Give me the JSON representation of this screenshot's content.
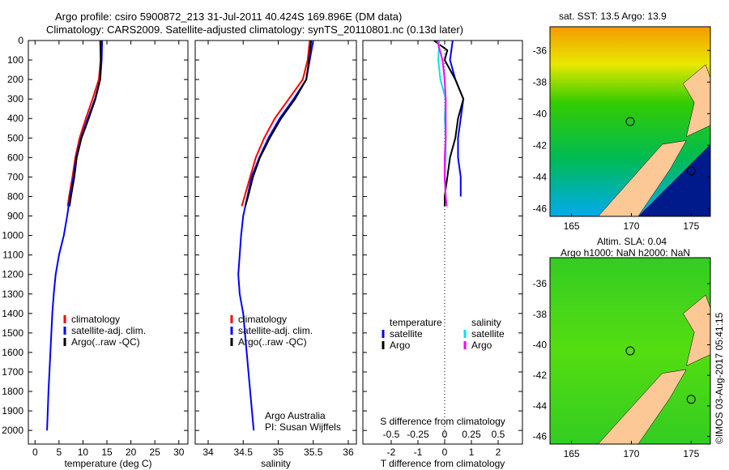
{
  "title_line1": "Argo profile: csiro 5900872_213 31-Jul-2011 40.424S 169.896E (DM data)",
  "title_line2": "Climatology: CARS2009. Satellite-adjusted climatology: synTS_20110801.nc (0.13d later)",
  "credit_org": "Argo Australia",
  "credit_pi": "PI: Susan Wijffels",
  "footer": "©IMOS 03-Aug-2017 05:41:15",
  "colors": {
    "climatology": "#ff0000",
    "satellite": "#0000ff",
    "argo": "#000000",
    "sal_sat": "#00e5e5",
    "sal_argo": "#ff00ff"
  },
  "chart_data": [
    {
      "type": "line",
      "name": "temperature",
      "xlabel": "temperature (deg C)",
      "ylabel": "depth",
      "xlim": [
        -1.4,
        31.9
      ],
      "ylim": [
        0,
        2070
      ],
      "xticks": [
        0,
        5,
        10,
        15,
        20,
        25,
        30
      ],
      "yticks": [
        0,
        100,
        200,
        300,
        400,
        500,
        600,
        700,
        800,
        900,
        1000,
        1100,
        1200,
        1300,
        1400,
        1500,
        1600,
        1700,
        1800,
        1900,
        2000
      ],
      "legend": [
        "climatology",
        "satellite-adj. clim.",
        "Argo(..raw -QC)"
      ],
      "series": [
        {
          "name": "climatology",
          "color": "#ff0000",
          "depth": [
            0,
            100,
            200,
            300,
            400,
            500,
            600,
            700,
            800,
            850
          ],
          "values": [
            13.8,
            13.7,
            13.3,
            12.0,
            10.6,
            9.3,
            8.4,
            7.8,
            7.1,
            6.8
          ]
        },
        {
          "name": "satellite-adj. clim.",
          "color": "#0000ff",
          "depth": [
            0,
            100,
            200,
            300,
            400,
            500,
            600,
            700,
            800,
            900,
            1000,
            1100,
            1200,
            1300,
            1400,
            1600,
            1800,
            2000
          ],
          "values": [
            14.0,
            13.9,
            13.6,
            12.5,
            11.0,
            9.6,
            8.6,
            8.0,
            7.3,
            6.7,
            6.0,
            5.0,
            4.3,
            3.9,
            3.6,
            3.2,
            2.8,
            2.5
          ]
        },
        {
          "name": "Argo(..raw -QC)",
          "color": "#000000",
          "depth": [
            0,
            100,
            200,
            300,
            400,
            500,
            600,
            700,
            800,
            850
          ],
          "values": [
            13.6,
            13.7,
            13.6,
            12.6,
            11.2,
            9.7,
            8.7,
            8.2,
            7.5,
            7.2
          ]
        }
      ]
    },
    {
      "type": "line",
      "name": "salinity",
      "xlabel": "salinity",
      "xlim": [
        33.815,
        36.116
      ],
      "ylim": [
        0,
        2070
      ],
      "xticks": [
        34,
        34.5,
        35,
        35.5,
        36
      ],
      "legend": [
        "climatology",
        "satellite-adj. clim.",
        "Argo(..raw -QC)"
      ],
      "series": [
        {
          "name": "climatology",
          "color": "#ff0000",
          "depth": [
            0,
            100,
            200,
            300,
            400,
            500,
            600,
            700,
            800,
            850
          ],
          "values": [
            35.45,
            35.42,
            35.35,
            35.15,
            34.95,
            34.8,
            34.68,
            34.6,
            34.52,
            34.48
          ]
        },
        {
          "name": "satellite-adj. clim.",
          "color": "#0000ff",
          "depth": [
            0,
            100,
            200,
            300,
            400,
            500,
            600,
            700,
            800,
            900,
            1000,
            1100,
            1200,
            1300,
            1400,
            1600,
            1800,
            2000
          ],
          "values": [
            35.5,
            35.45,
            35.4,
            35.22,
            35.02,
            34.86,
            34.73,
            34.62,
            34.56,
            34.5,
            34.47,
            34.45,
            34.43,
            34.45,
            34.5,
            34.55,
            34.6,
            34.65
          ]
        },
        {
          "name": "Argo(..raw -QC)",
          "color": "#000000",
          "depth": [
            0,
            100,
            200,
            300,
            400,
            500,
            600,
            700,
            800,
            850
          ],
          "values": [
            35.47,
            35.44,
            35.4,
            35.24,
            35.04,
            34.88,
            34.74,
            34.64,
            34.57,
            34.53
          ]
        }
      ]
    },
    {
      "type": "line",
      "name": "difference",
      "xlabel": "T difference from climatology",
      "xlabel2": "S difference from climatology",
      "xlim": [
        -3.06,
        2.91
      ],
      "ylim": [
        0,
        2070
      ],
      "xticks": [
        -2,
        -1,
        0,
        1,
        2
      ],
      "xticks2": [
        -0.5,
        -0.25,
        0,
        0.25,
        0.5
      ],
      "legend_headers": [
        "temperature",
        "salinity"
      ],
      "legend": [
        "satellite",
        "Argo",
        "satellite",
        "Argo"
      ],
      "series": [
        {
          "name": "T satellite",
          "color": "#0000ff",
          "depth": [
            0,
            100,
            200,
            300,
            400,
            500,
            600,
            700,
            800
          ],
          "values": [
            0.3,
            0.2,
            0.4,
            0.7,
            0.6,
            0.5,
            0.5,
            0.6,
            0.6
          ]
        },
        {
          "name": "T Argo",
          "color": "#000000",
          "depth": [
            0,
            50,
            100,
            200,
            300,
            400,
            500,
            600,
            700,
            800,
            850
          ],
          "values": [
            -0.4,
            0.1,
            0,
            0.4,
            0.7,
            0.5,
            0.4,
            0.2,
            0.1,
            0,
            0
          ]
        },
        {
          "name": "S satellite",
          "color": "#00e5e5",
          "scale": 4,
          "depth": [
            0,
            100,
            200,
            300,
            400,
            500,
            600,
            700,
            800
          ],
          "values": [
            -0.05,
            -0.06,
            -0.04,
            0.01,
            0.0,
            0.01,
            0.01,
            0.0,
            0.01
          ]
        },
        {
          "name": "S Argo",
          "color": "#ff00ff",
          "scale": 4,
          "depth": [
            0,
            100,
            200,
            300,
            400,
            500,
            600,
            700,
            800,
            850
          ],
          "values": [
            -0.07,
            -0.02,
            0.0,
            0.01,
            0.01,
            0.01,
            0.0,
            0.0,
            0.01,
            0.02
          ]
        }
      ]
    }
  ],
  "map1": {
    "title": "sat. SST: 13.5 Argo: 13.9",
    "lat_ticks": [
      "-36",
      "-38",
      "-40",
      "-42",
      "-44",
      "-46"
    ],
    "lon_ticks": [
      "165",
      "170",
      "175"
    ]
  },
  "map2": {
    "title1": "Altim. SLA: 0.04",
    "title2": "Argo h1000: NaN h2000: NaN",
    "lat_ticks": [
      "-36",
      "-38",
      "-40",
      "-42",
      "-44",
      "-46"
    ],
    "lon_ticks": [
      "165",
      "170",
      "175"
    ]
  }
}
